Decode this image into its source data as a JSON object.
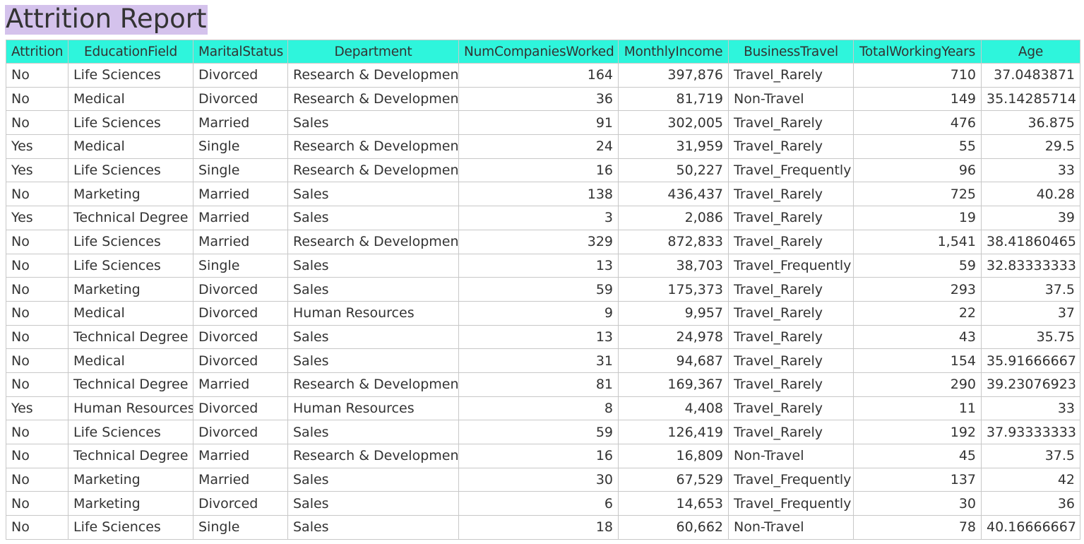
{
  "title": "Attrition Report",
  "colors": {
    "title_highlight": "#d4c2ec",
    "header_background": "#2ef5dc",
    "grid_lines": "#c8c8c8",
    "text": "#333333"
  },
  "table": {
    "columns": [
      {
        "key": "attrition",
        "label": "Attrition",
        "align": "left"
      },
      {
        "key": "education_field",
        "label": "EducationField",
        "align": "left"
      },
      {
        "key": "marital_status",
        "label": "MaritalStatus",
        "align": "left"
      },
      {
        "key": "department",
        "label": "Department",
        "align": "left"
      },
      {
        "key": "num_companies_worked",
        "label": "NumCompaniesWorked",
        "align": "right"
      },
      {
        "key": "monthly_income",
        "label": "MonthlyIncome",
        "align": "right"
      },
      {
        "key": "business_travel",
        "label": "BusinessTravel",
        "align": "left"
      },
      {
        "key": "total_working_years",
        "label": "TotalWorkingYears",
        "align": "right"
      },
      {
        "key": "age",
        "label": "Age",
        "align": "right"
      }
    ],
    "rows": [
      [
        "No",
        "Life Sciences",
        "Divorced",
        "Research & Development",
        "164",
        "397,876",
        "Travel_Rarely",
        "710",
        "37.0483871"
      ],
      [
        "No",
        "Medical",
        "Divorced",
        "Research & Development",
        "36",
        "81,719",
        "Non-Travel",
        "149",
        "35.14285714"
      ],
      [
        "No",
        "Life Sciences",
        "Married",
        "Sales",
        "91",
        "302,005",
        "Travel_Rarely",
        "476",
        "36.875"
      ],
      [
        "Yes",
        "Medical",
        "Single",
        "Research & Development",
        "24",
        "31,959",
        "Travel_Rarely",
        "55",
        "29.5"
      ],
      [
        "Yes",
        "Life Sciences",
        "Single",
        "Research & Development",
        "16",
        "50,227",
        "Travel_Frequently",
        "96",
        "33"
      ],
      [
        "No",
        "Marketing",
        "Married",
        "Sales",
        "138",
        "436,437",
        "Travel_Rarely",
        "725",
        "40.28"
      ],
      [
        "Yes",
        "Technical Degree",
        "Married",
        "Sales",
        "3",
        "2,086",
        "Travel_Rarely",
        "19",
        "39"
      ],
      [
        "No",
        "Life Sciences",
        "Married",
        "Research & Development",
        "329",
        "872,833",
        "Travel_Rarely",
        "1,541",
        "38.41860465"
      ],
      [
        "No",
        "Life Sciences",
        "Single",
        "Sales",
        "13",
        "38,703",
        "Travel_Frequently",
        "59",
        "32.83333333"
      ],
      [
        "No",
        "Marketing",
        "Divorced",
        "Sales",
        "59",
        "175,373",
        "Travel_Rarely",
        "293",
        "37.5"
      ],
      [
        "No",
        "Medical",
        "Divorced",
        "Human Resources",
        "9",
        "9,957",
        "Travel_Rarely",
        "22",
        "37"
      ],
      [
        "No",
        "Technical Degree",
        "Divorced",
        "Sales",
        "13",
        "24,978",
        "Travel_Rarely",
        "43",
        "35.75"
      ],
      [
        "No",
        "Medical",
        "Divorced",
        "Sales",
        "31",
        "94,687",
        "Travel_Rarely",
        "154",
        "35.91666667"
      ],
      [
        "No",
        "Technical Degree",
        "Married",
        "Research & Development",
        "81",
        "169,367",
        "Travel_Rarely",
        "290",
        "39.23076923"
      ],
      [
        "Yes",
        "Human Resources",
        "Divorced",
        "Human Resources",
        "8",
        "4,408",
        "Travel_Rarely",
        "11",
        "33"
      ],
      [
        "No",
        "Life Sciences",
        "Divorced",
        "Sales",
        "59",
        "126,419",
        "Travel_Rarely",
        "192",
        "37.93333333"
      ],
      [
        "No",
        "Technical Degree",
        "Married",
        "Research & Development",
        "16",
        "16,809",
        "Non-Travel",
        "45",
        "37.5"
      ],
      [
        "No",
        "Marketing",
        "Married",
        "Sales",
        "30",
        "67,529",
        "Travel_Frequently",
        "137",
        "42"
      ],
      [
        "No",
        "Marketing",
        "Divorced",
        "Sales",
        "6",
        "14,653",
        "Travel_Frequently",
        "30",
        "36"
      ],
      [
        "No",
        "Life Sciences",
        "Single",
        "Sales",
        "18",
        "60,662",
        "Non-Travel",
        "78",
        "40.16666667"
      ]
    ]
  }
}
